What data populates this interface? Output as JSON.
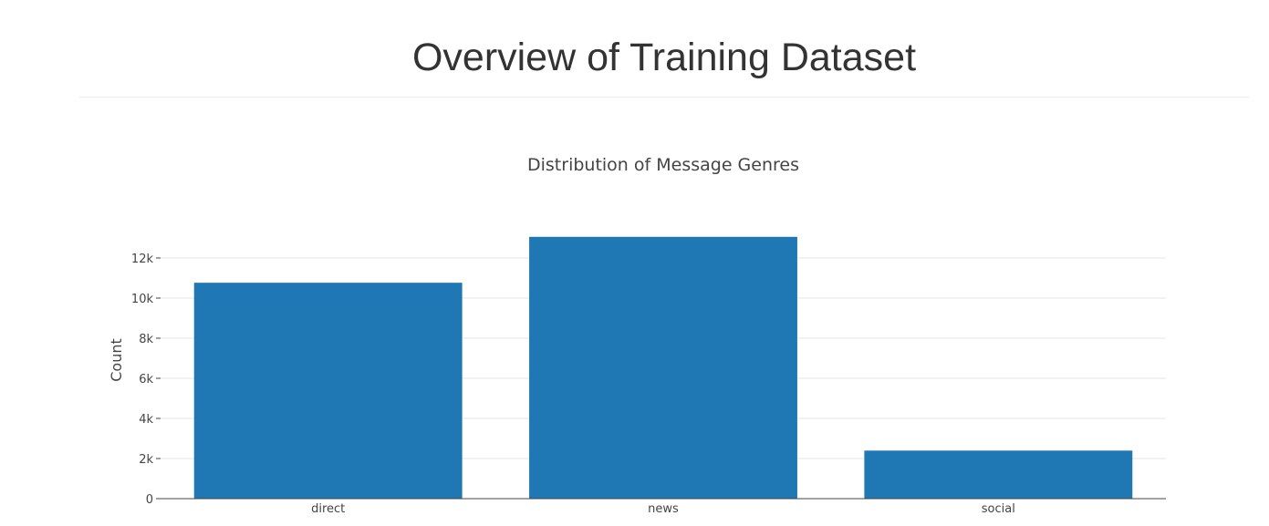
{
  "header": {
    "title": "Overview of Training Dataset"
  },
  "chart_data": {
    "type": "bar",
    "title": "Distribution of Message Genres",
    "xlabel": "",
    "ylabel": "Count",
    "categories": [
      "direct",
      "news",
      "social"
    ],
    "values": [
      10766,
      13054,
      2396
    ],
    "ylim": [
      0,
      13700
    ],
    "yticks": [
      0,
      2000,
      4000,
      6000,
      8000,
      10000,
      12000
    ],
    "ytick_labels": [
      "0",
      "2k",
      "4k",
      "6k",
      "8k",
      "10k",
      "12k"
    ],
    "bar_color": "#1f77b4",
    "grid": true,
    "legend": "none"
  }
}
